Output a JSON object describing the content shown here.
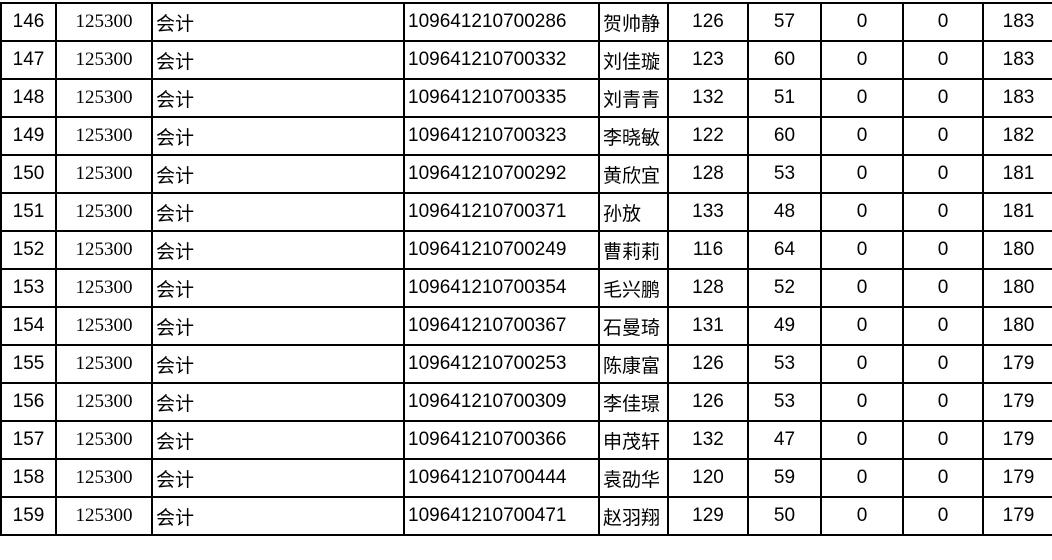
{
  "rows": [
    {
      "rank": "146",
      "code": "125300",
      "major": "会计",
      "id": "109641210700286",
      "name": "贺帅静",
      "s1": "126",
      "s2": "57",
      "s3": "0",
      "s4": "0",
      "total": "183"
    },
    {
      "rank": "147",
      "code": "125300",
      "major": "会计",
      "id": "109641210700332",
      "name": "刘佳璇",
      "s1": "123",
      "s2": "60",
      "s3": "0",
      "s4": "0",
      "total": "183"
    },
    {
      "rank": "148",
      "code": "125300",
      "major": "会计",
      "id": "109641210700335",
      "name": "刘青青",
      "s1": "132",
      "s2": "51",
      "s3": "0",
      "s4": "0",
      "total": "183"
    },
    {
      "rank": "149",
      "code": "125300",
      "major": "会计",
      "id": "109641210700323",
      "name": "李晓敏",
      "s1": "122",
      "s2": "60",
      "s3": "0",
      "s4": "0",
      "total": "182"
    },
    {
      "rank": "150",
      "code": "125300",
      "major": "会计",
      "id": "109641210700292",
      "name": "黄欣宜",
      "s1": "128",
      "s2": "53",
      "s3": "0",
      "s4": "0",
      "total": "181"
    },
    {
      "rank": "151",
      "code": "125300",
      "major": "会计",
      "id": "109641210700371",
      "name": "孙放",
      "s1": "133",
      "s2": "48",
      "s3": "0",
      "s4": "0",
      "total": "181"
    },
    {
      "rank": "152",
      "code": "125300",
      "major": "会计",
      "id": "109641210700249",
      "name": "曹莉莉",
      "s1": "116",
      "s2": "64",
      "s3": "0",
      "s4": "0",
      "total": "180"
    },
    {
      "rank": "153",
      "code": "125300",
      "major": "会计",
      "id": "109641210700354",
      "name": "毛兴鹏",
      "s1": "128",
      "s2": "52",
      "s3": "0",
      "s4": "0",
      "total": "180"
    },
    {
      "rank": "154",
      "code": "125300",
      "major": "会计",
      "id": "109641210700367",
      "name": "石曼琦",
      "s1": "131",
      "s2": "49",
      "s3": "0",
      "s4": "0",
      "total": "180"
    },
    {
      "rank": "155",
      "code": "125300",
      "major": "会计",
      "id": "109641210700253",
      "name": "陈康富",
      "s1": "126",
      "s2": "53",
      "s3": "0",
      "s4": "0",
      "total": "179"
    },
    {
      "rank": "156",
      "code": "125300",
      "major": "会计",
      "id": "109641210700309",
      "name": "李佳璟",
      "s1": "126",
      "s2": "53",
      "s3": "0",
      "s4": "0",
      "total": "179"
    },
    {
      "rank": "157",
      "code": "125300",
      "major": "会计",
      "id": "109641210700366",
      "name": "申茂轩",
      "s1": "132",
      "s2": "47",
      "s3": "0",
      "s4": "0",
      "total": "179"
    },
    {
      "rank": "158",
      "code": "125300",
      "major": "会计",
      "id": "109641210700444",
      "name": "袁劭华",
      "s1": "120",
      "s2": "59",
      "s3": "0",
      "s4": "0",
      "total": "179"
    },
    {
      "rank": "159",
      "code": "125300",
      "major": "会计",
      "id": "109641210700471",
      "name": "赵羽翔",
      "s1": "129",
      "s2": "50",
      "s3": "0",
      "s4": "0",
      "total": "179"
    }
  ]
}
